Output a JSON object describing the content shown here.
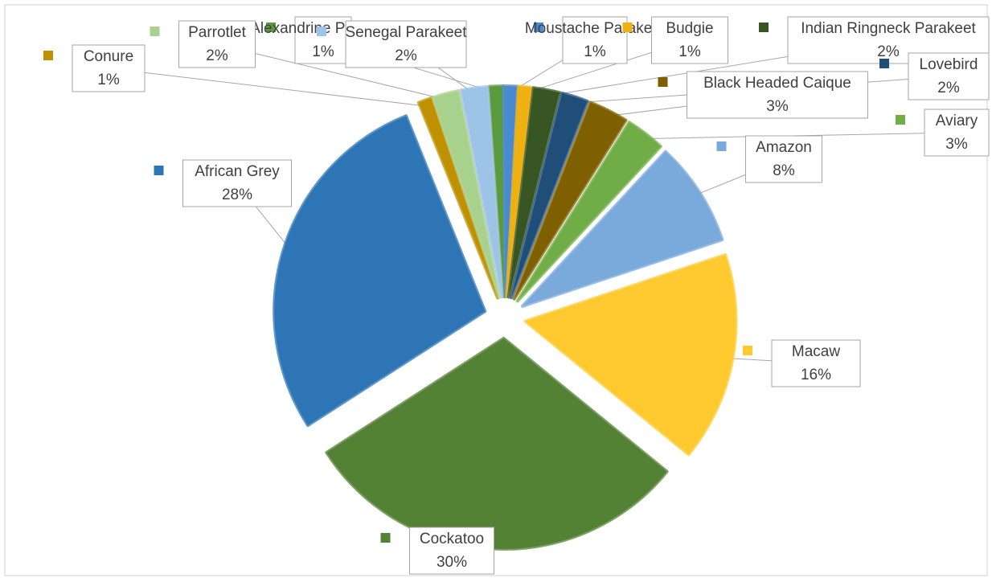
{
  "chart_data": {
    "type": "pie",
    "categories": [
      "Alexandrine Parakeet",
      "Moustache Parakeet",
      "Budgie",
      "Indian Ringneck Parakeet",
      "Lovebird",
      "Black Headed Caique",
      "Aviary",
      "Amazon",
      "Macaw",
      "Cockatoo",
      "African Grey",
      "Conure",
      "Parrotlet",
      "Senegal Parakeet"
    ],
    "values": [
      1,
      1,
      1,
      2,
      2,
      3,
      3,
      8,
      16,
      30,
      28,
      1,
      2,
      2
    ],
    "value_labels": [
      "1%",
      "1%",
      "1%",
      "2%",
      "2%",
      "3%",
      "3%",
      "8%",
      "16%",
      "30%",
      "28%",
      "1%",
      "2%",
      "2%"
    ],
    "colors": [
      "#5b9b3f",
      "#4a8ad0",
      "#eeb111",
      "#375623",
      "#1f4e79",
      "#7f6000",
      "#70ad47",
      "#7aa9dc",
      "#ffc92f",
      "#548235",
      "#2e75b6",
      "#bf9000",
      "#a9d18e",
      "#9dc3e6"
    ]
  }
}
